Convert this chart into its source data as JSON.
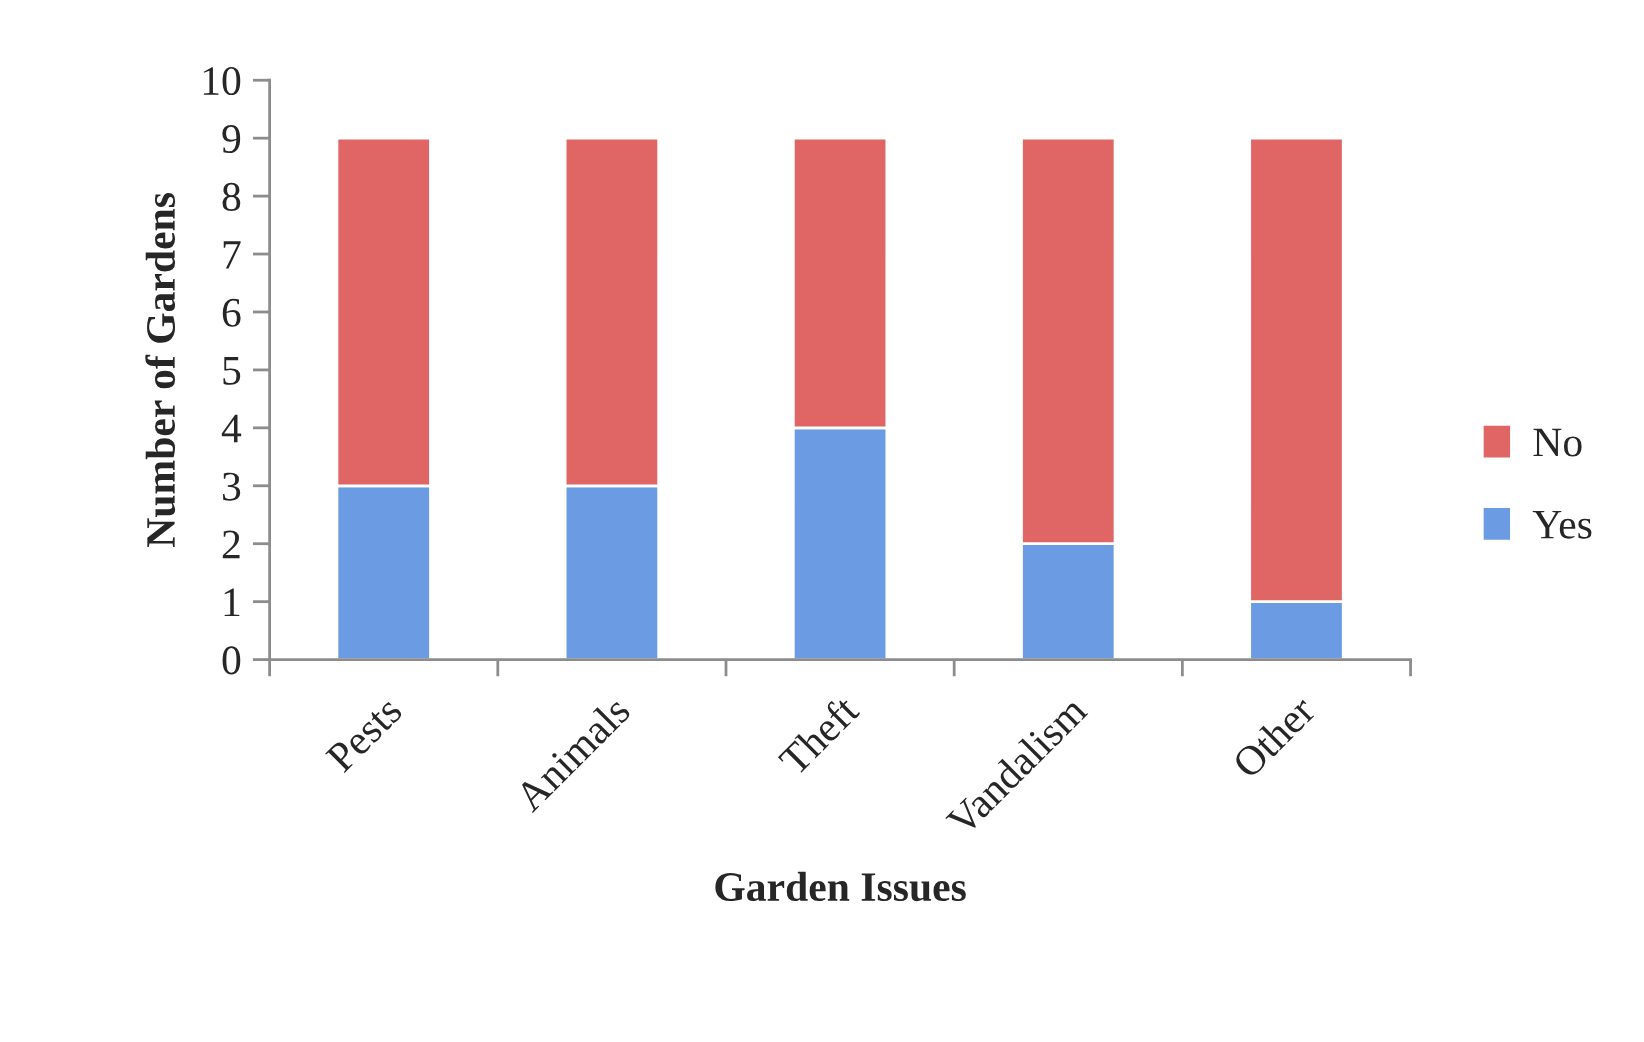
{
  "chart_data": {
    "type": "bar",
    "stacked": true,
    "xlabel": "Garden Issues",
    "ylabel": "Number of Gardens",
    "categories": [
      "Pests",
      "Animals",
      "Theft",
      "Vandalism",
      "Other"
    ],
    "series": [
      {
        "name": "Yes",
        "color": "#6b9ce3",
        "values": [
          3,
          3,
          4,
          2,
          1
        ]
      },
      {
        "name": "No",
        "color": "#e06666",
        "values": [
          6,
          6,
          5,
          7,
          8
        ]
      }
    ],
    "ylim": [
      0,
      10
    ],
    "yticks": [
      0,
      1,
      2,
      3,
      4,
      5,
      6,
      7,
      8,
      9,
      10
    ],
    "grid": false,
    "legend": "right"
  }
}
